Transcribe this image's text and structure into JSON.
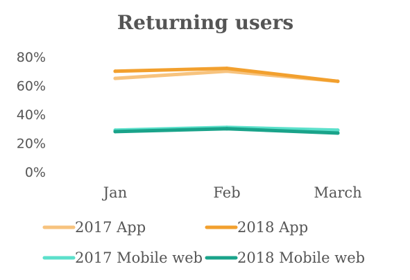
{
  "chart_data": {
    "type": "line",
    "title": "Returning users",
    "xlabel": "",
    "ylabel": "",
    "categories": [
      "Jan",
      "Feb",
      "March"
    ],
    "y_ticks": [
      "0%",
      "20%",
      "40%",
      "60%",
      "80%"
    ],
    "ylim": [
      0,
      80
    ],
    "grid": false,
    "legend_position": "bottom",
    "series": [
      {
        "name": "2017 App",
        "values": [
          65,
          70,
          63
        ],
        "color": "#F7C37E"
      },
      {
        "name": "2018 App",
        "values": [
          70,
          72,
          63
        ],
        "color": "#F2A02E"
      },
      {
        "name": "2017 Mobile web",
        "values": [
          29,
          31,
          29
        ],
        "color": "#5CE0CB"
      },
      {
        "name": "2018 Mobile web",
        "values": [
          28,
          30,
          27
        ],
        "color": "#1AA38A"
      }
    ]
  }
}
